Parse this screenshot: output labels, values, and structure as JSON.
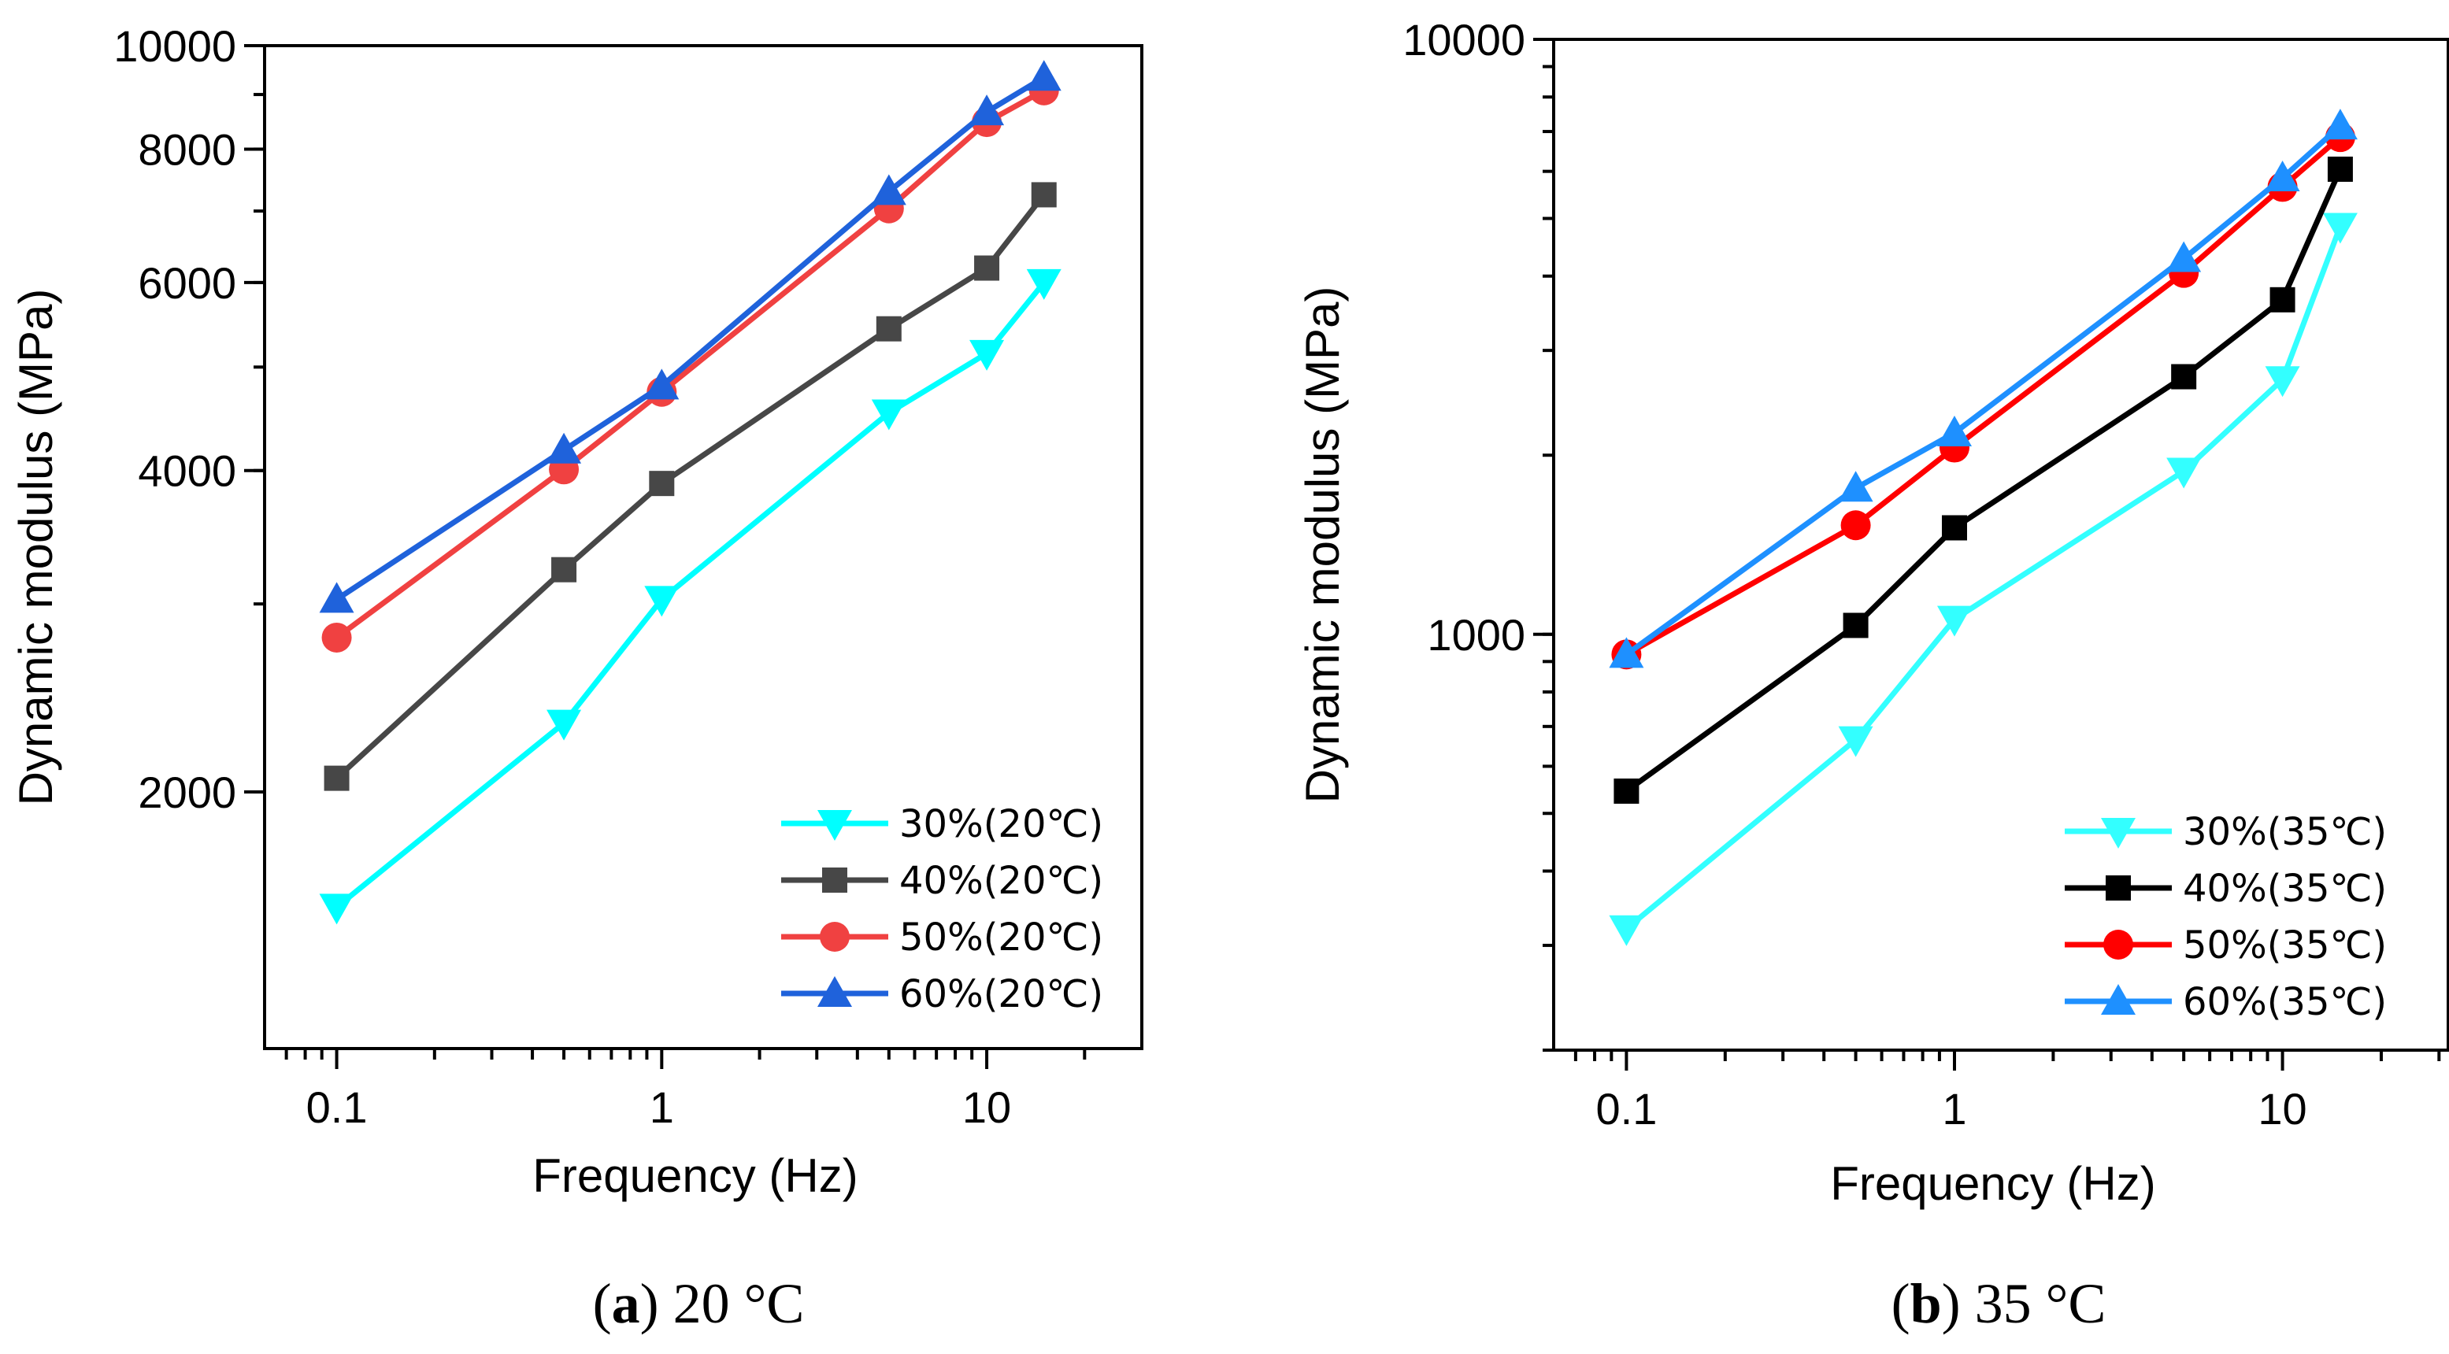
{
  "chart_data": [
    {
      "type": "line",
      "caption_letter": "a",
      "caption_text": " 20 °C",
      "xlabel": "Frequency (Hz)",
      "ylabel": "Dynamic modulus (MPa)",
      "xscale": "log",
      "yscale": "log",
      "xlim": [
        0.06,
        30
      ],
      "ylim": [
        1150,
        10000
      ],
      "xticks": [
        {
          "value": 0.1,
          "label": "0.1"
        },
        {
          "value": 1,
          "label": "1"
        },
        {
          "value": 10,
          "label": "10"
        }
      ],
      "yticks": [
        {
          "value": 2000,
          "label": "2000"
        },
        {
          "value": 4000,
          "label": "4000"
        },
        {
          "value": 6000,
          "label": "6000"
        },
        {
          "value": 8000,
          "label": "8000"
        },
        {
          "value": 10000,
          "label": "10000"
        }
      ],
      "legend_position": "bottom-right",
      "x": [
        0.1,
        0.5,
        1,
        5,
        10,
        15
      ],
      "series": [
        {
          "name": "30%(20℃)",
          "color": "#00FFFF",
          "marker": "triangle-down",
          "values": [
            1560,
            2320,
            3030,
            4530,
            5150,
            6000
          ]
        },
        {
          "name": "40%(20℃)",
          "color": "#474747",
          "marker": "square",
          "values": [
            2060,
            3230,
            3890,
            5430,
            6190,
            7250
          ]
        },
        {
          "name": "50%(20℃)",
          "color": "#F04141",
          "marker": "circle",
          "values": [
            2790,
            4010,
            4740,
            7040,
            8480,
            9080
          ]
        },
        {
          "name": "60%(20℃)",
          "color": "#1F62DB",
          "marker": "triangle-up",
          "values": [
            3030,
            4180,
            4800,
            7300,
            8670,
            9340
          ]
        }
      ]
    },
    {
      "type": "line",
      "caption_letter": "b",
      "caption_text": " 35 °C",
      "xlabel": "Frequency (Hz)",
      "ylabel": "Dynamic modulus (MPa)",
      "xscale": "log",
      "yscale": "log",
      "xlim": [
        0.06,
        32
      ],
      "ylim": [
        200,
        10000
      ],
      "xticks": [
        {
          "value": 0.1,
          "label": "0.1"
        },
        {
          "value": 1,
          "label": "1"
        },
        {
          "value": 10,
          "label": "10"
        }
      ],
      "yticks": [
        {
          "value": 1000,
          "label": "1000"
        },
        {
          "value": 10000,
          "label": "10000"
        }
      ],
      "legend_position": "bottom-right",
      "x": [
        0.1,
        0.5,
        1,
        5,
        10,
        15
      ],
      "series": [
        {
          "name": "30%(35℃)",
          "color": "#33FFFF",
          "marker": "triangle-down",
          "values": [
            320,
            665,
            1060,
            1880,
            2680,
            4850
          ]
        },
        {
          "name": "40%(35℃)",
          "color": "#000000",
          "marker": "square",
          "values": [
            545,
            1035,
            1510,
            2710,
            3650,
            6050
          ]
        },
        {
          "name": "50%(35℃)",
          "color": "#FF0000",
          "marker": "circle",
          "values": [
            925,
            1525,
            2060,
            4050,
            5650,
            6850
          ]
        },
        {
          "name": "60%(35℃)",
          "color": "#1E90FF",
          "marker": "triangle-up",
          "values": [
            925,
            1760,
            2180,
            4280,
            5850,
            7150
          ]
        }
      ]
    }
  ]
}
